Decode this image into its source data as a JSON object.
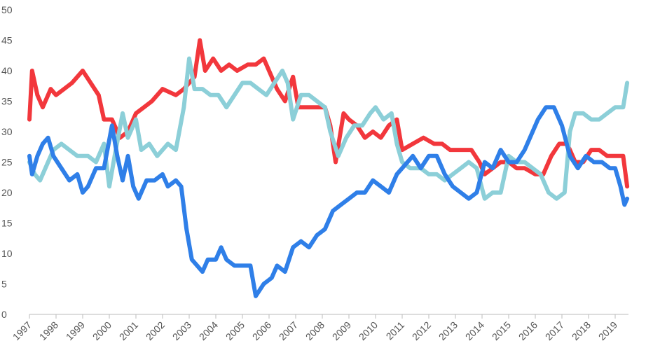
{
  "chart_data": {
    "type": "line",
    "xlim": [
      1997,
      2019.5
    ],
    "xticks": [
      1997,
      1998,
      1999,
      2000,
      2001,
      2002,
      2003,
      2004,
      2005,
      2006,
      2007,
      2008,
      2009,
      2010,
      2011,
      2012,
      2013,
      2014,
      2015,
      2016,
      2017,
      2018,
      2019
    ],
    "ylim": [
      0,
      50
    ],
    "yticks": [
      0,
      5,
      10,
      15,
      20,
      25,
      30,
      35,
      40,
      45,
      50
    ],
    "grid": false,
    "series": [
      {
        "color": "#f2373c",
        "x": [
          1997.0,
          1997.1,
          1997.3,
          1997.5,
          1997.8,
          1998.0,
          1998.3,
          1998.6,
          1999.0,
          1999.3,
          1999.6,
          1999.8,
          2000.1,
          2000.4,
          2000.7,
          2001.0,
          2001.3,
          2001.6,
          2002.0,
          2002.5,
          2002.8,
          2003.2,
          2003.4,
          2003.6,
          2003.9,
          2004.2,
          2004.5,
          2004.8,
          2005.2,
          2005.5,
          2005.8,
          2006.0,
          2006.3,
          2006.6,
          2006.9,
          2007.1,
          2007.5,
          2007.8,
          2008.1,
          2008.3,
          2008.5,
          2008.8,
          2009.0,
          2009.3,
          2009.6,
          2009.9,
          2010.2,
          2010.5,
          2010.8,
          2011.0,
          2011.4,
          2011.8,
          2012.2,
          2012.5,
          2012.8,
          2013.2,
          2013.6,
          2013.9,
          2014.1,
          2014.4,
          2014.7,
          2015.0,
          2015.3,
          2015.6,
          2016.0,
          2016.3,
          2016.6,
          2016.9,
          2017.2,
          2017.5,
          2017.8,
          2018.1,
          2018.4,
          2018.7,
          2019.0,
          2019.3,
          2019.45
        ],
        "values": [
          32,
          40,
          36,
          34,
          37,
          36,
          37,
          38,
          40,
          38,
          36,
          32,
          32,
          29,
          30,
          33,
          34,
          35,
          37,
          36,
          37,
          39,
          45,
          40,
          42,
          40,
          41,
          40,
          41,
          41,
          42,
          40,
          37,
          35,
          39,
          34,
          34,
          34,
          34,
          31,
          25,
          33,
          32,
          31,
          29,
          30,
          29,
          31,
          32,
          27,
          28,
          29,
          28,
          28,
          27,
          27,
          27,
          25,
          23,
          24,
          25,
          25,
          24,
          24,
          23,
          23,
          26,
          28,
          28,
          25,
          25,
          27,
          27,
          26,
          26,
          26,
          21
        ]
      },
      {
        "color": "#8ccfd8",
        "x": [
          1997.0,
          1997.2,
          1997.4,
          1997.6,
          1997.9,
          1998.2,
          1998.5,
          1998.8,
          1999.2,
          1999.5,
          1999.8,
          2000.0,
          2000.2,
          2000.5,
          2000.7,
          2001.0,
          2001.2,
          2001.5,
          2001.8,
          2002.2,
          2002.5,
          2002.8,
          2003.0,
          2003.2,
          2003.5,
          2003.8,
          2004.1,
          2004.4,
          2004.7,
          2005.0,
          2005.3,
          2005.6,
          2005.9,
          2006.2,
          2006.5,
          2006.7,
          2006.9,
          2007.2,
          2007.5,
          2007.8,
          2008.1,
          2008.3,
          2008.6,
          2008.9,
          2009.2,
          2009.5,
          2009.8,
          2010.0,
          2010.3,
          2010.6,
          2010.8,
          2011.0,
          2011.3,
          2011.7,
          2012.0,
          2012.3,
          2012.6,
          2012.9,
          2013.2,
          2013.5,
          2013.8,
          2014.1,
          2014.4,
          2014.7,
          2015.0,
          2015.3,
          2015.6,
          2015.9,
          2016.2,
          2016.5,
          2016.8,
          2017.1,
          2017.3,
          2017.5,
          2017.8,
          2018.1,
          2018.4,
          2018.7,
          2019.0,
          2019.3,
          2019.45
        ],
        "values": [
          25,
          23,
          22,
          24,
          27,
          28,
          27,
          26,
          26,
          25,
          28,
          21,
          26,
          33,
          29,
          32,
          27,
          28,
          26,
          28,
          27,
          34,
          42,
          37,
          37,
          36,
          36,
          34,
          36,
          38,
          38,
          37,
          36,
          38,
          40,
          38,
          32,
          36,
          36,
          35,
          34,
          30,
          26,
          29,
          31,
          31,
          33,
          34,
          32,
          33,
          28,
          25,
          24,
          24,
          23,
          23,
          22,
          23,
          24,
          25,
          24,
          19,
          20,
          20,
          26,
          25,
          25,
          24,
          23,
          20,
          19,
          20,
          30,
          33,
          33,
          32,
          32,
          33,
          34,
          34,
          38
        ]
      },
      {
        "color": "#2f7fe8",
        "x": [
          1997.0,
          1997.1,
          1997.3,
          1997.5,
          1997.7,
          1997.9,
          1998.2,
          1998.5,
          1998.8,
          1999.0,
          1999.2,
          1999.5,
          1999.8,
          2000.1,
          2000.3,
          2000.5,
          2000.7,
          2000.9,
          2001.1,
          2001.4,
          2001.7,
          2002.0,
          2002.2,
          2002.5,
          2002.7,
          2002.9,
          2003.1,
          2003.3,
          2003.5,
          2003.7,
          2004.0,
          2004.2,
          2004.4,
          2004.7,
          2005.0,
          2005.3,
          2005.5,
          2005.8,
          2006.1,
          2006.3,
          2006.6,
          2006.9,
          2007.2,
          2007.5,
          2007.8,
          2008.1,
          2008.4,
          2008.7,
          2009.0,
          2009.3,
          2009.6,
          2009.9,
          2010.2,
          2010.5,
          2010.8,
          2011.0,
          2011.4,
          2011.7,
          2012.0,
          2012.3,
          2012.6,
          2012.9,
          2013.2,
          2013.5,
          2013.8,
          2014.1,
          2014.4,
          2014.7,
          2015.0,
          2015.3,
          2015.6,
          2015.9,
          2016.1,
          2016.4,
          2016.7,
          2017.0,
          2017.3,
          2017.6,
          2017.9,
          2018.2,
          2018.5,
          2018.8,
          2019.0,
          2019.2,
          2019.35,
          2019.45
        ],
        "values": [
          26,
          23,
          26,
          28,
          29,
          26,
          24,
          22,
          23,
          20,
          21,
          24,
          24,
          31,
          26,
          22,
          26,
          21,
          19,
          22,
          22,
          23,
          21,
          22,
          21,
          14,
          9,
          8,
          7,
          9,
          9,
          11,
          9,
          8,
          8,
          8,
          3,
          5,
          6,
          8,
          7,
          11,
          12,
          11,
          13,
          14,
          17,
          18,
          19,
          20,
          20,
          22,
          21,
          20,
          23,
          24,
          26,
          24,
          26,
          26,
          23,
          21,
          20,
          19,
          20,
          25,
          24,
          27,
          25,
          25,
          27,
          30,
          32,
          34,
          34,
          31,
          26,
          24,
          26,
          25,
          25,
          24,
          24,
          21,
          18,
          19
        ]
      }
    ]
  }
}
